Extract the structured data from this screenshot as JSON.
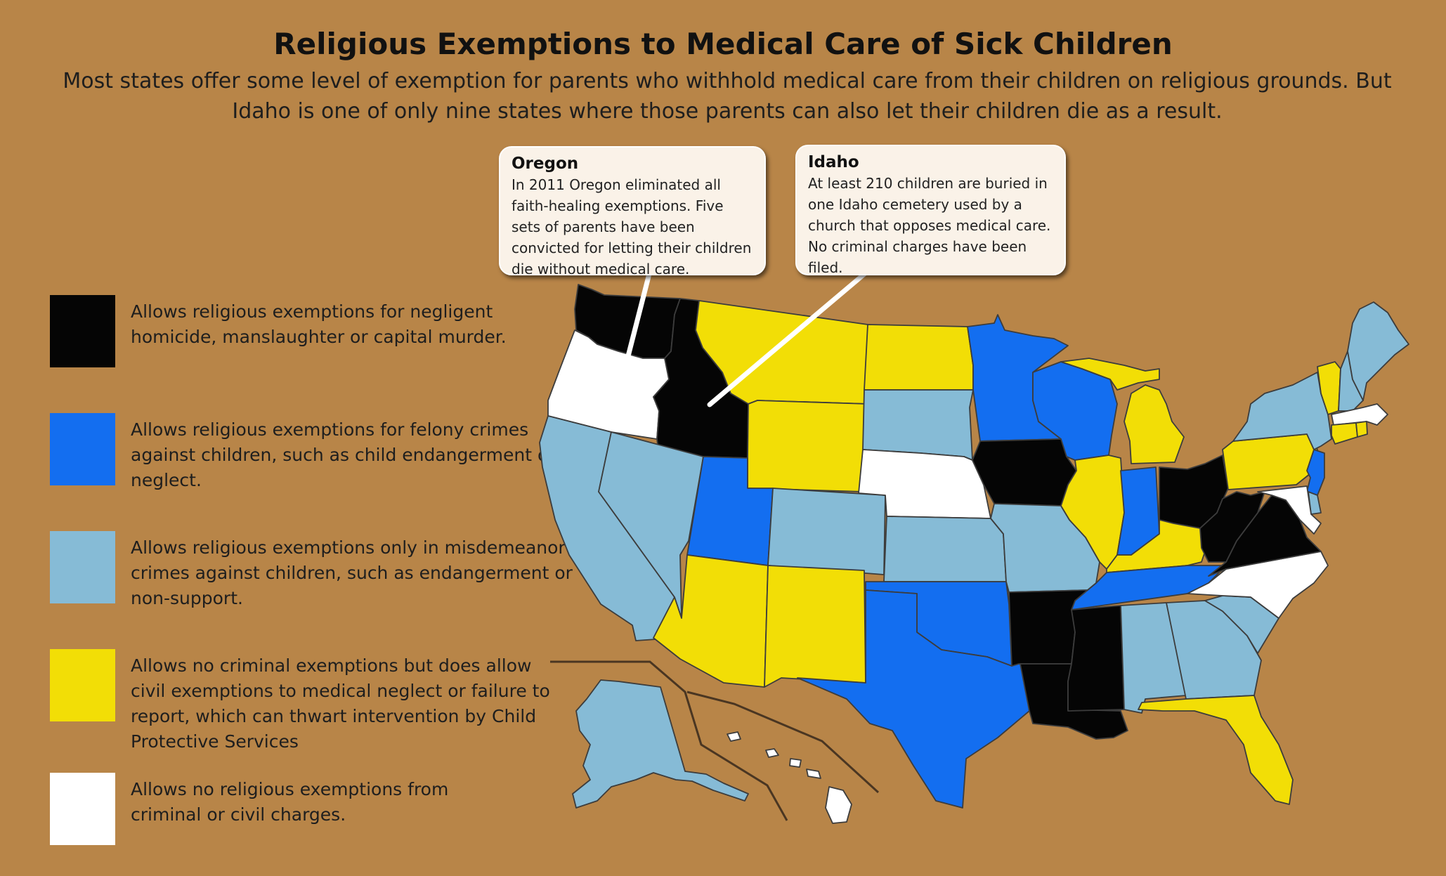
{
  "title": "Religious Exemptions to Medical Care of Sick Children",
  "subtitle": "Most states offer some level of exemption for parents who withhold medical care from their children on religious grounds.  But Idaho is one of only nine states where those parents can also let their children die as a result.",
  "colors": {
    "background": "#b88548",
    "homicide": "#050505",
    "felony": "#136ef0",
    "misdemeanor": "#86bbd6",
    "civil": "#f2de06",
    "none": "#ffffff"
  },
  "legend": [
    {
      "key": "homicide",
      "text": "Allows religious exemptions for negligent homicide, manslaughter or capital murder."
    },
    {
      "key": "felony",
      "text": "Allows religious exemptions for felony crimes against children, such as child endangerment or neglect."
    },
    {
      "key": "misdemeanor",
      "text": "Allows religious exemptions only in misdemeanor crimes against children, such as endangerment or non-support."
    },
    {
      "key": "civil",
      "text": "Allows no criminal exemptions but does allow civil exemptions to medical neglect or failure to report, which can thwart intervention by Child Protective Services"
    },
    {
      "key": "none",
      "text": "Allows no religious exemptions from criminal or civil charges."
    }
  ],
  "callouts": {
    "oregon": {
      "title": "Oregon",
      "body": "In 2011 Oregon eliminated all faith-healing exemptions.  Five sets of parents have been convicted for letting their children die without medical care."
    },
    "idaho": {
      "title": "Idaho",
      "body": "At least 210 children are buried in one Idaho cemetery used by a church that opposes medical care. No criminal charges have been filed."
    }
  },
  "states": [
    {
      "id": "WA",
      "category": "homicide"
    },
    {
      "id": "OR",
      "category": "none"
    },
    {
      "id": "CA",
      "category": "misdemeanor"
    },
    {
      "id": "ID",
      "category": "homicide"
    },
    {
      "id": "NV",
      "category": "misdemeanor"
    },
    {
      "id": "MT",
      "category": "civil"
    },
    {
      "id": "WY",
      "category": "civil"
    },
    {
      "id": "UT",
      "category": "felony"
    },
    {
      "id": "AZ",
      "category": "civil"
    },
    {
      "id": "CO",
      "category": "misdemeanor"
    },
    {
      "id": "NM",
      "category": "civil"
    },
    {
      "id": "ND",
      "category": "civil"
    },
    {
      "id": "SD",
      "category": "misdemeanor"
    },
    {
      "id": "NE",
      "category": "none"
    },
    {
      "id": "KS",
      "category": "misdemeanor"
    },
    {
      "id": "OK",
      "category": "felony"
    },
    {
      "id": "TX",
      "category": "felony"
    },
    {
      "id": "MN",
      "category": "felony"
    },
    {
      "id": "IA",
      "category": "homicide"
    },
    {
      "id": "MO",
      "category": "misdemeanor"
    },
    {
      "id": "AR",
      "category": "homicide"
    },
    {
      "id": "LA",
      "category": "homicide"
    },
    {
      "id": "WI",
      "category": "felony"
    },
    {
      "id": "IL",
      "category": "civil"
    },
    {
      "id": "MI",
      "category": "civil"
    },
    {
      "id": "IN",
      "category": "felony"
    },
    {
      "id": "OH",
      "category": "homicide"
    },
    {
      "id": "KY",
      "category": "civil"
    },
    {
      "id": "TN",
      "category": "felony"
    },
    {
      "id": "MS",
      "category": "homicide"
    },
    {
      "id": "AL",
      "category": "misdemeanor"
    },
    {
      "id": "GA",
      "category": "misdemeanor"
    },
    {
      "id": "FL",
      "category": "civil"
    },
    {
      "id": "SC",
      "category": "misdemeanor"
    },
    {
      "id": "NC",
      "category": "none"
    },
    {
      "id": "VA",
      "category": "homicide"
    },
    {
      "id": "WV",
      "category": "homicide"
    },
    {
      "id": "PA",
      "category": "civil"
    },
    {
      "id": "NY",
      "category": "misdemeanor"
    },
    {
      "id": "NJ",
      "category": "felony"
    },
    {
      "id": "DE",
      "category": "misdemeanor"
    },
    {
      "id": "MD",
      "category": "none"
    },
    {
      "id": "CT",
      "category": "civil"
    },
    {
      "id": "RI",
      "category": "civil"
    },
    {
      "id": "MA",
      "category": "none"
    },
    {
      "id": "VT",
      "category": "civil"
    },
    {
      "id": "NH",
      "category": "misdemeanor"
    },
    {
      "id": "ME",
      "category": "misdemeanor"
    },
    {
      "id": "AK",
      "category": "misdemeanor"
    },
    {
      "id": "HI",
      "category": "none"
    }
  ]
}
